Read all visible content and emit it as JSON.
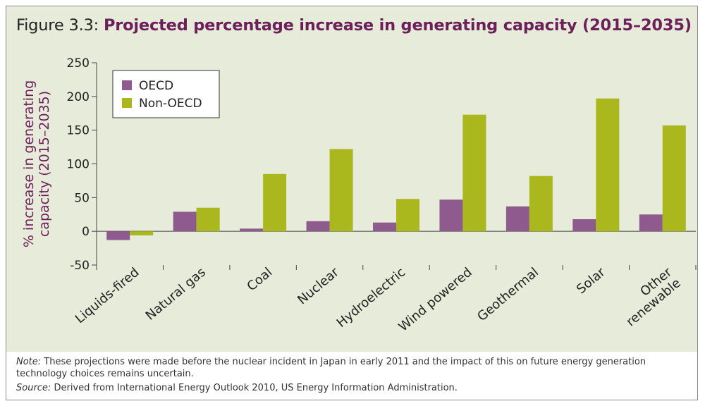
{
  "figure": {
    "number": "Figure 3.3:",
    "title": "Projected percentage increase in generating capacity (2015–2035)"
  },
  "chart_data": {
    "type": "bar",
    "title": "Projected percentage increase in generating capacity (2015–2035)",
    "ylabel_line1": "% increase in generating",
    "ylabel_line2": "capacity (2015–2035)",
    "xlabel": "",
    "ylim": [
      -50,
      250
    ],
    "yticks": [
      -50,
      0,
      50,
      100,
      150,
      200,
      250
    ],
    "grid": false,
    "legend_position": "top-left",
    "categories": [
      [
        "Liquids-fired"
      ],
      [
        "Natural gas"
      ],
      [
        "Coal"
      ],
      [
        "Nuclear"
      ],
      [
        "Hydroelectric"
      ],
      [
        "Wind powered"
      ],
      [
        "Geothermal"
      ],
      [
        "Solar"
      ],
      [
        "Other",
        "renewable"
      ]
    ],
    "series": [
      {
        "name": "OECD",
        "color": "#8f5a8d",
        "values": [
          -13,
          29,
          4,
          15,
          13,
          47,
          37,
          18,
          25
        ]
      },
      {
        "name": "Non-OECD",
        "color": "#aab81e",
        "values": [
          -6,
          35,
          85,
          122,
          48,
          173,
          82,
          197,
          157
        ]
      }
    ]
  },
  "notes": {
    "note_label": "Note:",
    "note_text": " These projections were made before the nuclear incident in Japan in early 2011 and the impact of this on future energy generation technology choices remains uncertain.",
    "source_label": "Source:",
    "source_text": " Derived from International Energy Outlook 2010, US Energy Information Administration."
  }
}
